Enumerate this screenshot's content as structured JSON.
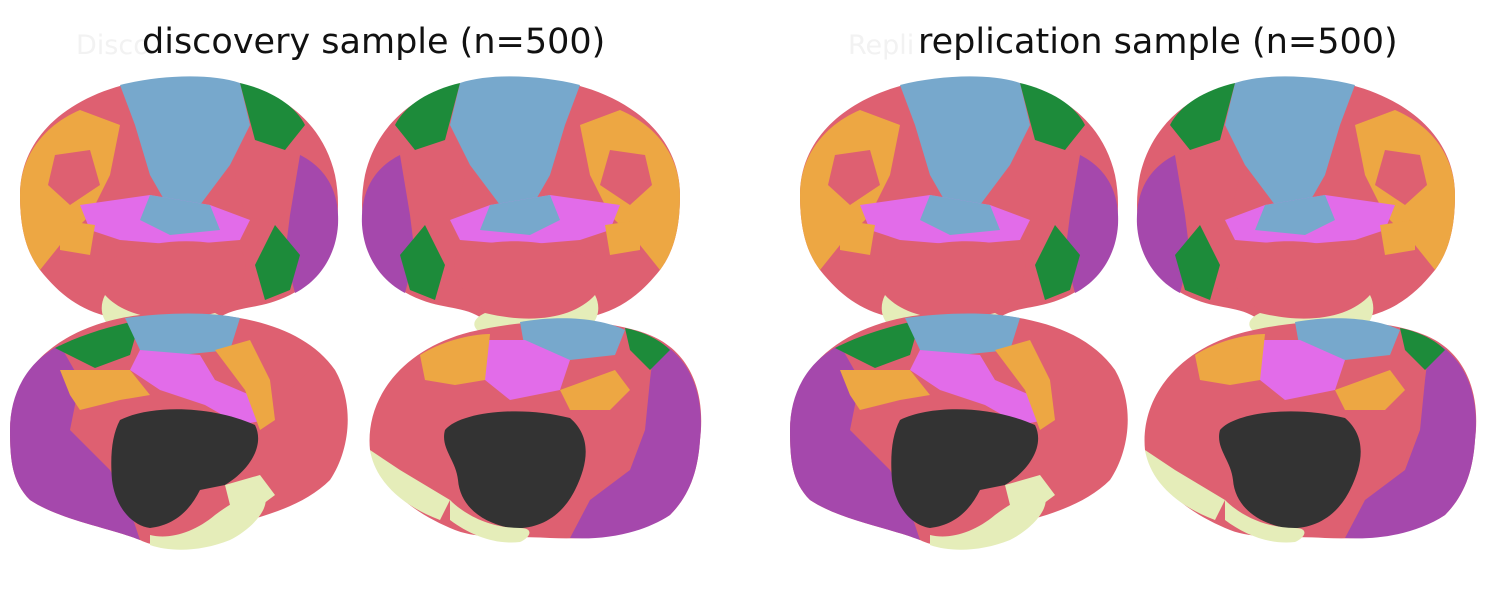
{
  "panels": [
    {
      "title": "discovery sample (n=500)",
      "ghost_text": "Disco"
    },
    {
      "title": "replication sample (n=500)",
      "ghost_text": "Repli"
    }
  ],
  "network_colors": {
    "visual": "#a548ac",
    "somatomotor": "#77a8cc",
    "dorsal_attention": "#1d8b3a",
    "ventral_attention": "#e26ce9",
    "limbic": "#e5edb9",
    "frontoparietal": "#eda743",
    "default": "#de6071",
    "medial_wall": "#333333"
  }
}
